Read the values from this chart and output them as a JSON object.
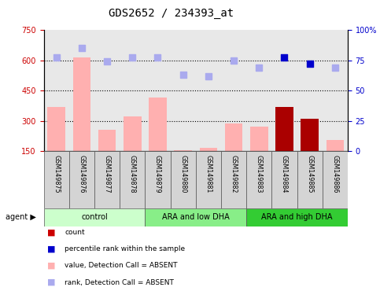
{
  "title": "GDS2652 / 234393_at",
  "samples": [
    "GSM149875",
    "GSM149876",
    "GSM149877",
    "GSM149878",
    "GSM149879",
    "GSM149880",
    "GSM149881",
    "GSM149882",
    "GSM149883",
    "GSM149884",
    "GSM149885",
    "GSM149886"
  ],
  "bar_values": [
    370,
    615,
    255,
    320,
    415,
    155,
    165,
    285,
    270,
    370,
    310,
    205
  ],
  "bar_colors": [
    "#ffb0b0",
    "#ffb0b0",
    "#ffb0b0",
    "#ffb0b0",
    "#ffb0b0",
    "#ffb0b0",
    "#ffb0b0",
    "#ffb0b0",
    "#ffb0b0",
    "#aa0000",
    "#aa0000",
    "#ffb0b0"
  ],
  "rank_values": [
    615,
    660,
    595,
    615,
    615,
    530,
    520,
    600,
    565,
    615,
    585,
    565
  ],
  "rank_colors": [
    "#aaaaee",
    "#aaaaee",
    "#aaaaee",
    "#aaaaee",
    "#aaaaee",
    "#aaaaee",
    "#aaaaee",
    "#aaaaee",
    "#aaaaee",
    "#0000cc",
    "#0000cc",
    "#aaaaee"
  ],
  "ylim_left": [
    150,
    750
  ],
  "ylim_right": [
    0,
    100
  ],
  "yticks_left": [
    150,
    300,
    450,
    600,
    750
  ],
  "yticks_right": [
    0,
    25,
    50,
    75,
    100
  ],
  "grid_lines": [
    300,
    450,
    600
  ],
  "groups": [
    {
      "label": "control",
      "start": 0,
      "end": 3,
      "color": "#ccffcc"
    },
    {
      "label": "ARA and low DHA",
      "start": 4,
      "end": 7,
      "color": "#88ee88"
    },
    {
      "label": "ARA and high DHA",
      "start": 8,
      "end": 11,
      "color": "#33cc33"
    }
  ],
  "legend_items": [
    {
      "color": "#cc0000",
      "label": "count"
    },
    {
      "color": "#0000cc",
      "label": "percentile rank within the sample"
    },
    {
      "color": "#ffb0b0",
      "label": "value, Detection Call = ABSENT"
    },
    {
      "color": "#aaaaee",
      "label": "rank, Detection Call = ABSENT"
    }
  ],
  "plot_bg_color": "#e8e8e8",
  "title_fontsize": 10,
  "tick_fontsize": 7,
  "label_fontsize": 7
}
